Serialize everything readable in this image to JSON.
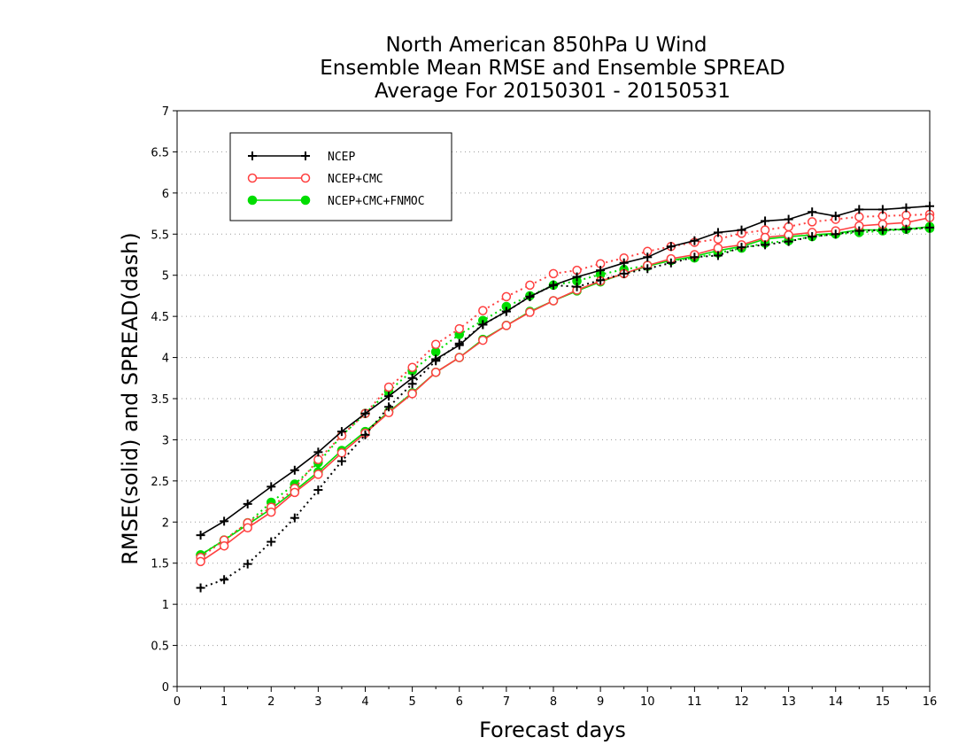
{
  "chart_data": {
    "type": "line",
    "title_lines": [
      "North American 850hPa U Wind",
      "Ensemble Mean RMSE and Ensemble SPREAD",
      "Average For 20150301 - 20150531"
    ],
    "xlabel": "Forecast days",
    "ylabel": "RMSE(solid) and SPREAD(dash)",
    "xlim": [
      0,
      16
    ],
    "ylim": [
      0,
      7
    ],
    "x_ticks": [
      "0",
      "1",
      "2",
      "3",
      "4",
      "5",
      "6",
      "7",
      "8",
      "9",
      "10",
      "11",
      "12",
      "13",
      "14",
      "15",
      "16"
    ],
    "y_ticks": [
      "0",
      "0.5",
      "1",
      "1.5",
      "2",
      "2.5",
      "3",
      "3.5",
      "4",
      "4.5",
      "5",
      "5.5",
      "6",
      "6.5",
      "7"
    ],
    "grid": "horizontal-dotted",
    "legend_position": "top-left",
    "x": [
      0.5,
      1,
      1.5,
      2,
      2.5,
      3,
      3.5,
      4,
      4.5,
      5,
      5.5,
      6,
      6.5,
      7,
      7.5,
      8,
      8.5,
      9,
      9.5,
      10,
      10.5,
      11,
      11.5,
      12,
      12.5,
      13,
      13.5,
      14,
      14.5,
      15,
      15.5,
      16
    ],
    "series": [
      {
        "name": "NCEP",
        "color": "#000000",
        "marker": "plus",
        "rmse": [
          1.84,
          2.01,
          2.22,
          2.43,
          2.63,
          2.85,
          3.1,
          3.32,
          3.53,
          3.75,
          3.98,
          4.15,
          4.4,
          4.56,
          4.74,
          4.88,
          4.98,
          5.06,
          5.15,
          5.22,
          5.35,
          5.42,
          5.52,
          5.55,
          5.66,
          5.68,
          5.77,
          5.72,
          5.8,
          5.8,
          5.82,
          5.84
        ],
        "spread": [
          1.2,
          1.3,
          1.49,
          1.76,
          2.05,
          2.39,
          2.74,
          3.06,
          3.4,
          3.68,
          3.96,
          4.17,
          4.4,
          4.56,
          4.74,
          4.88,
          4.86,
          4.94,
          5.02,
          5.08,
          5.15,
          5.22,
          5.24,
          5.34,
          5.37,
          5.41,
          5.47,
          5.5,
          5.54,
          5.55,
          5.56,
          5.58
        ]
      },
      {
        "name": "NCEP+CMC",
        "color": "#ff4040",
        "marker": "open-circle",
        "rmse": [
          1.52,
          1.71,
          1.93,
          2.12,
          2.36,
          2.58,
          2.84,
          3.08,
          3.33,
          3.56,
          3.82,
          4.0,
          4.21,
          4.39,
          4.55,
          4.69,
          4.82,
          4.93,
          5.02,
          5.12,
          5.2,
          5.25,
          5.33,
          5.37,
          5.46,
          5.49,
          5.52,
          5.54,
          5.6,
          5.62,
          5.64,
          5.7
        ],
        "spread": [
          1.57,
          1.78,
          1.99,
          2.18,
          2.41,
          2.76,
          3.05,
          3.32,
          3.64,
          3.88,
          4.16,
          4.35,
          4.57,
          4.74,
          4.88,
          5.02,
          5.06,
          5.14,
          5.21,
          5.29,
          5.35,
          5.4,
          5.44,
          5.51,
          5.55,
          5.59,
          5.65,
          5.68,
          5.71,
          5.72,
          5.73,
          5.74
        ]
      },
      {
        "name": "NCEP+CMC+FNMOC",
        "color": "#00dd00",
        "marker": "filled-circle",
        "rmse": [
          1.6,
          1.78,
          1.97,
          2.16,
          2.38,
          2.61,
          2.87,
          3.1,
          3.34,
          3.57,
          3.82,
          4.0,
          4.22,
          4.39,
          4.56,
          4.69,
          4.81,
          4.92,
          5.02,
          5.11,
          5.18,
          5.23,
          5.3,
          5.35,
          5.44,
          5.47,
          5.49,
          5.51,
          5.55,
          5.55,
          5.56,
          5.59
        ],
        "spread": [
          1.6,
          1.78,
          1.99,
          2.24,
          2.46,
          2.72,
          3.05,
          3.32,
          3.59,
          3.84,
          4.07,
          4.28,
          4.45,
          4.62,
          4.75,
          4.88,
          4.93,
          5.01,
          5.07,
          5.12,
          5.18,
          5.21,
          5.27,
          5.33,
          5.39,
          5.42,
          5.47,
          5.5,
          5.52,
          5.54,
          5.56,
          5.57
        ]
      }
    ]
  }
}
